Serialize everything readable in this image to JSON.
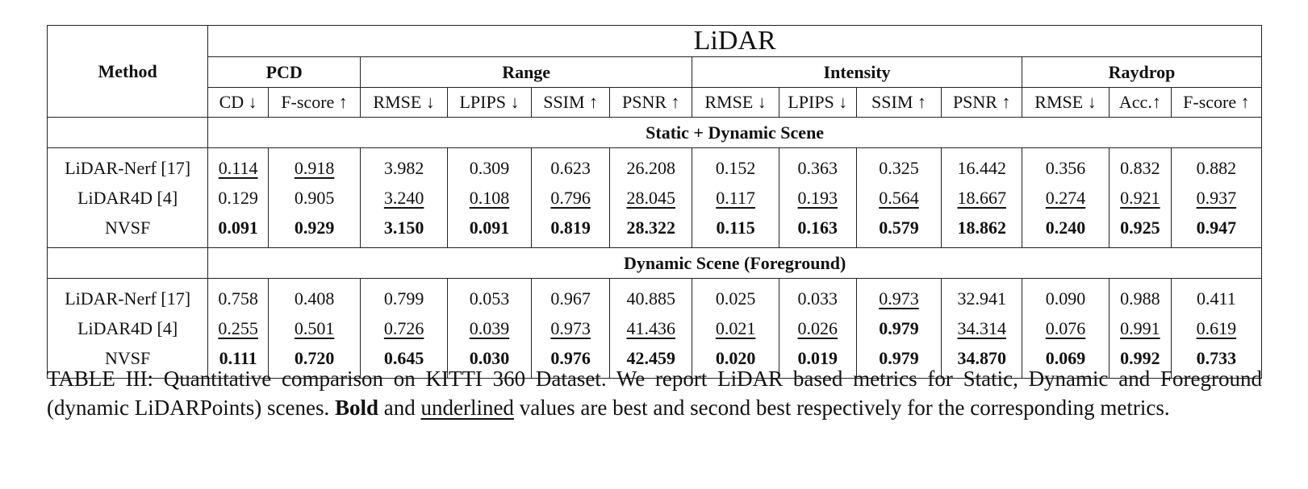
{
  "table": {
    "method_header": "Method",
    "top_header": "LiDAR",
    "groups": [
      {
        "label": "PCD",
        "span": 2
      },
      {
        "label": "Range",
        "span": 4
      },
      {
        "label": "Intensity",
        "span": 4
      },
      {
        "label": "Raydrop",
        "span": 3
      }
    ],
    "columns": [
      "CD ↓",
      "F-score ↑",
      "RMSE ↓",
      "LPIPS ↓",
      "SSIM ↑",
      "PSNR ↑",
      "RMSE ↓",
      "LPIPS ↓",
      "SSIM ↑",
      "PSNR ↑",
      "RMSE ↓",
      "Acc.↑",
      "F-score ↑"
    ],
    "sections": [
      {
        "title": "Static + Dynamic Scene",
        "rows": [
          {
            "method": "LiDAR-Nerf [17]",
            "values": [
              "0.114",
              "0.918",
              "3.982",
              "0.309",
              "0.623",
              "26.208",
              "0.152",
              "0.363",
              "0.325",
              "16.442",
              "0.356",
              "0.832",
              "0.882"
            ],
            "styles": [
              "u",
              "u",
              "",
              "",
              "",
              "",
              "",
              "",
              "",
              "",
              "",
              "",
              ""
            ]
          },
          {
            "method": "LiDAR4D [4]",
            "values": [
              "0.129",
              "0.905",
              "3.240",
              "0.108",
              "0.796",
              "28.045",
              "0.117",
              "0.193",
              "0.564",
              "18.667",
              "0.274",
              "0.921",
              "0.937"
            ],
            "styles": [
              "",
              "",
              "u",
              "u",
              "u",
              "u",
              "u",
              "u",
              "u",
              "u",
              "u",
              "u",
              "u"
            ]
          },
          {
            "method": "NVSF",
            "values": [
              "0.091",
              "0.929",
              "3.150",
              "0.091",
              "0.819",
              "28.322",
              "0.115",
              "0.163",
              "0.579",
              "18.862",
              "0.240",
              "0.925",
              "0.947"
            ],
            "styles": [
              "b",
              "b",
              "b",
              "b",
              "b",
              "b",
              "b",
              "b",
              "b",
              "b",
              "b",
              "b",
              "b"
            ]
          }
        ]
      },
      {
        "title": "Dynamic Scene (Foreground)",
        "rows": [
          {
            "method": "LiDAR-Nerf [17]",
            "values": [
              "0.758",
              "0.408",
              "0.799",
              "0.053",
              "0.967",
              "40.885",
              "0.025",
              "0.033",
              "0.973",
              "32.941",
              "0.090",
              "0.988",
              "0.411"
            ],
            "styles": [
              "",
              "",
              "",
              "",
              "",
              "",
              "",
              "",
              "u",
              "",
              "",
              "",
              ""
            ]
          },
          {
            "method": "LiDAR4D [4]",
            "values": [
              "0.255",
              "0.501",
              "0.726",
              "0.039",
              "0.973",
              "41.436",
              "0.021",
              "0.026",
              "0.979",
              "34.314",
              "0.076",
              "0.991",
              "0.619"
            ],
            "styles": [
              "u",
              "u",
              "u",
              "u",
              "u",
              "u",
              "u",
              "u",
              "b",
              "u",
              "u",
              "u",
              "u"
            ]
          },
          {
            "method": "NVSF",
            "values": [
              "0.111",
              "0.720",
              "0.645",
              "0.030",
              "0.976",
              "42.459",
              "0.020",
              "0.019",
              "0.979",
              "34.870",
              "0.069",
              "0.992",
              "0.733"
            ],
            "styles": [
              "b",
              "b",
              "b",
              "b",
              "b",
              "b",
              "b",
              "b",
              "b",
              "b",
              "b",
              "b",
              "b"
            ]
          }
        ]
      }
    ]
  },
  "caption": {
    "part1": "TABLE III: Quantitative comparison on KITTI 360 Dataset. We report LiDAR based metrics for Static, Dynamic and Foreground (dynamic LiDARPoints) scenes. ",
    "bold_word": "Bold",
    "part2": " and ",
    "underlined_word": "underlined",
    "part3": " values are best and second best respectively for the corresponding metrics."
  }
}
